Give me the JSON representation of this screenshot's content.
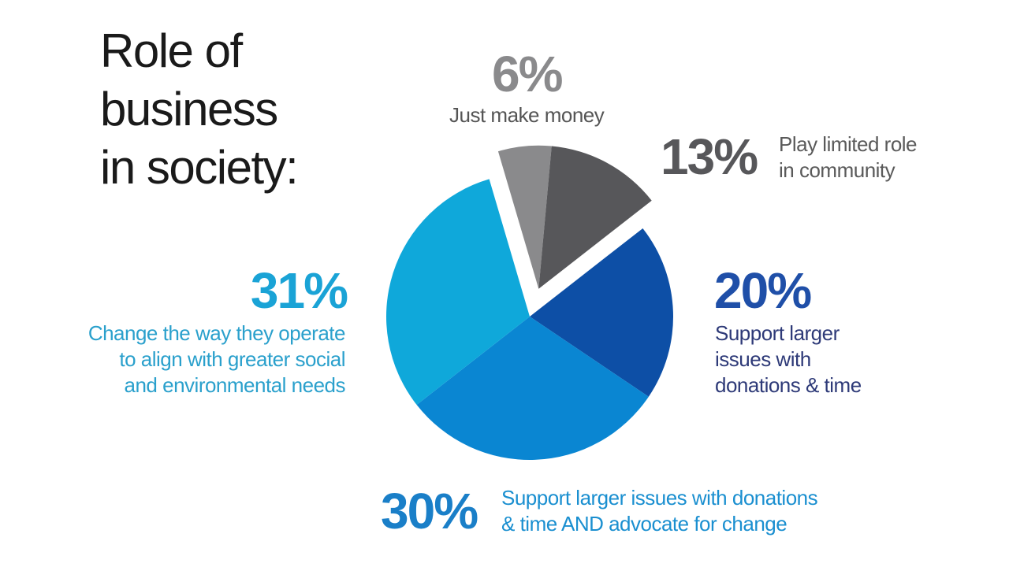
{
  "chart_data": {
    "type": "pie",
    "title": "Role of business in society:",
    "title_lines": [
      "Role of",
      "business",
      "in society:"
    ],
    "slices": [
      {
        "value": 6,
        "label": "6%",
        "description": [
          "Just make money"
        ],
        "color": "#8a8a8c",
        "text_color": "#8a8a8c",
        "desc_color": "#555555",
        "exploded": true
      },
      {
        "value": 13,
        "label": "13%",
        "description": [
          "Play limited role",
          "in community"
        ],
        "color": "#57575a",
        "text_color": "#57575a",
        "desc_color": "#5a5a5a",
        "exploded": true
      },
      {
        "value": 20,
        "label": "20%",
        "description": [
          "Support larger",
          "issues with",
          "donations & time"
        ],
        "color": "#0d4fa6",
        "text_color": "#1f4fa8",
        "desc_color": "#2e3a78",
        "exploded": false
      },
      {
        "value": 30,
        "label": "30%",
        "description": [
          "Support larger issues with donations",
          "& time AND advocate for change"
        ],
        "color": "#0a86d2",
        "text_color": "#1a7fc8",
        "desc_color": "#1a8fd0",
        "exploded": false
      },
      {
        "value": 31,
        "label": "31%",
        "description": [
          "Change the way they operate",
          "to align with greater social",
          "and environmental needs"
        ],
        "color": "#0fa8da",
        "text_color": "#1aa3d6",
        "desc_color": "#2aa0cc",
        "exploded": false
      }
    ]
  }
}
